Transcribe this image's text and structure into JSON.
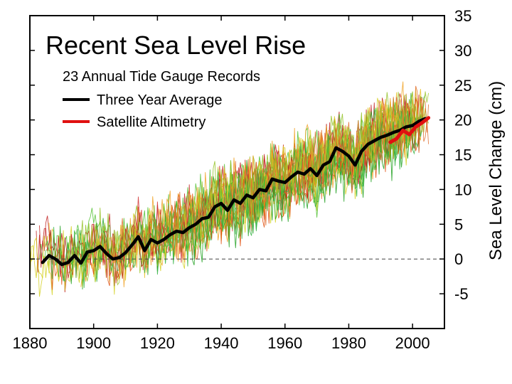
{
  "chart_data": {
    "type": "line",
    "title": "Recent Sea Level Rise",
    "xlabel": "",
    "ylabel": "Sea Level Change (cm)",
    "xlim": [
      1880,
      2010
    ],
    "ylim": [
      -10,
      35
    ],
    "x_ticks": [
      1880,
      1900,
      1920,
      1940,
      1960,
      1980,
      2000
    ],
    "x_tick_labels": [
      "1880",
      "1900",
      "1920",
      "1940",
      "1960",
      "1980",
      "2000"
    ],
    "y_ticks": [
      -5,
      0,
      5,
      10,
      15,
      20,
      25,
      30,
      35
    ],
    "y_tick_labels": [
      "-5",
      "0",
      "5",
      "10",
      "15",
      "20",
      "25",
      "30",
      "35"
    ],
    "zero_line": 0,
    "legend": [
      {
        "label": "23 Annual Tide Gauge Records",
        "color": ""
      },
      {
        "label": "Three Year Average",
        "color": "#000000"
      },
      {
        "label": "Satellite Altimetry",
        "color": "#e01010"
      }
    ],
    "series": [
      {
        "name": "Three Year Average",
        "color": "#000000",
        "x": [
          1884,
          1886,
          1888,
          1890,
          1892,
          1894,
          1896,
          1898,
          1900,
          1902,
          1904,
          1906,
          1908,
          1910,
          1912,
          1914,
          1916,
          1918,
          1920,
          1922,
          1924,
          1926,
          1928,
          1930,
          1932,
          1934,
          1936,
          1938,
          1940,
          1942,
          1944,
          1946,
          1948,
          1950,
          1952,
          1954,
          1956,
          1958,
          1960,
          1962,
          1964,
          1966,
          1968,
          1970,
          1972,
          1974,
          1976,
          1978,
          1980,
          1982,
          1984,
          1986,
          1988,
          1990,
          1992,
          1994,
          1996,
          1998,
          2000,
          2002,
          2004
        ],
        "values": [
          -0.5,
          0.5,
          0,
          -0.8,
          -0.5,
          0.5,
          -0.6,
          1.0,
          1.2,
          1.8,
          0.8,
          0,
          0.2,
          0.9,
          2.0,
          3.2,
          1.2,
          2.8,
          2.3,
          2.8,
          3.5,
          4.0,
          3.8,
          4.5,
          5.0,
          5.8,
          6.0,
          7.5,
          8.0,
          7.0,
          8.5,
          8.0,
          9.2,
          8.8,
          10.0,
          9.8,
          11.5,
          11.2,
          11.0,
          11.8,
          12.5,
          12.2,
          13.0,
          12.0,
          13.5,
          14.0,
          16.0,
          15.5,
          14.8,
          13.5,
          15.5,
          16.5,
          17.0,
          17.5,
          17.8,
          18.2,
          18.5,
          19.0,
          19.2,
          19.8,
          20.2
        ]
      },
      {
        "name": "Satellite Altimetry",
        "color": "#e01010",
        "x": [
          1993,
          1995,
          1997,
          1999,
          2001,
          2003,
          2005
        ],
        "values": [
          16.8,
          17.3,
          18.5,
          17.9,
          19.0,
          19.6,
          20.3
        ]
      }
    ]
  }
}
